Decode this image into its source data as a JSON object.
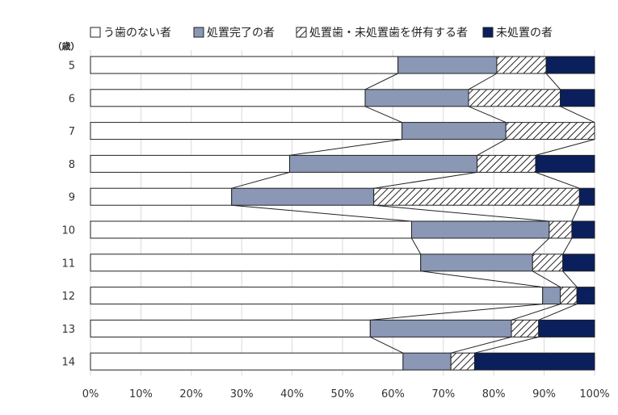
{
  "chart_data": {
    "type": "bar",
    "orientation": "horizontal",
    "stacked": "percent",
    "y_unit_label": "（歳）",
    "categories": [
      "5",
      "6",
      "7",
      "8",
      "9",
      "10",
      "11",
      "12",
      "13",
      "14"
    ],
    "series": [
      {
        "name": "う歯のない者",
        "values": [
          61,
          54.5,
          61.8,
          39.5,
          28,
          63.7,
          65.5,
          89.7,
          55.5,
          62
        ],
        "color": "#ffffff",
        "fill": "solid"
      },
      {
        "name": "処置完了の者",
        "values": [
          19.6,
          20.5,
          20.6,
          37.2,
          28.2,
          27.3,
          22.2,
          3.5,
          28,
          9.5
        ],
        "color": "#8a97b5",
        "fill": "solid"
      },
      {
        "name": "処置歯・未処置歯を併有する者",
        "values": [
          9.8,
          18.2,
          17.6,
          11.6,
          40.8,
          4.5,
          6,
          3.3,
          5.4,
          4.7
        ],
        "color": "#ffffff",
        "fill": "hatch"
      },
      {
        "name": "未処置の者",
        "values": [
          9.6,
          6.8,
          0,
          11.7,
          3,
          4.5,
          6.3,
          3.5,
          11.1,
          23.8
        ],
        "color": "#0a1f5c",
        "fill": "solid"
      }
    ],
    "xlim": [
      0,
      100
    ],
    "x_ticks": [
      "0%",
      "10%",
      "20%",
      "30%",
      "40%",
      "50%",
      "60%",
      "70%",
      "80%",
      "90%",
      "100%"
    ],
    "grid": true,
    "legend_position": "top",
    "connector_lines": true
  }
}
